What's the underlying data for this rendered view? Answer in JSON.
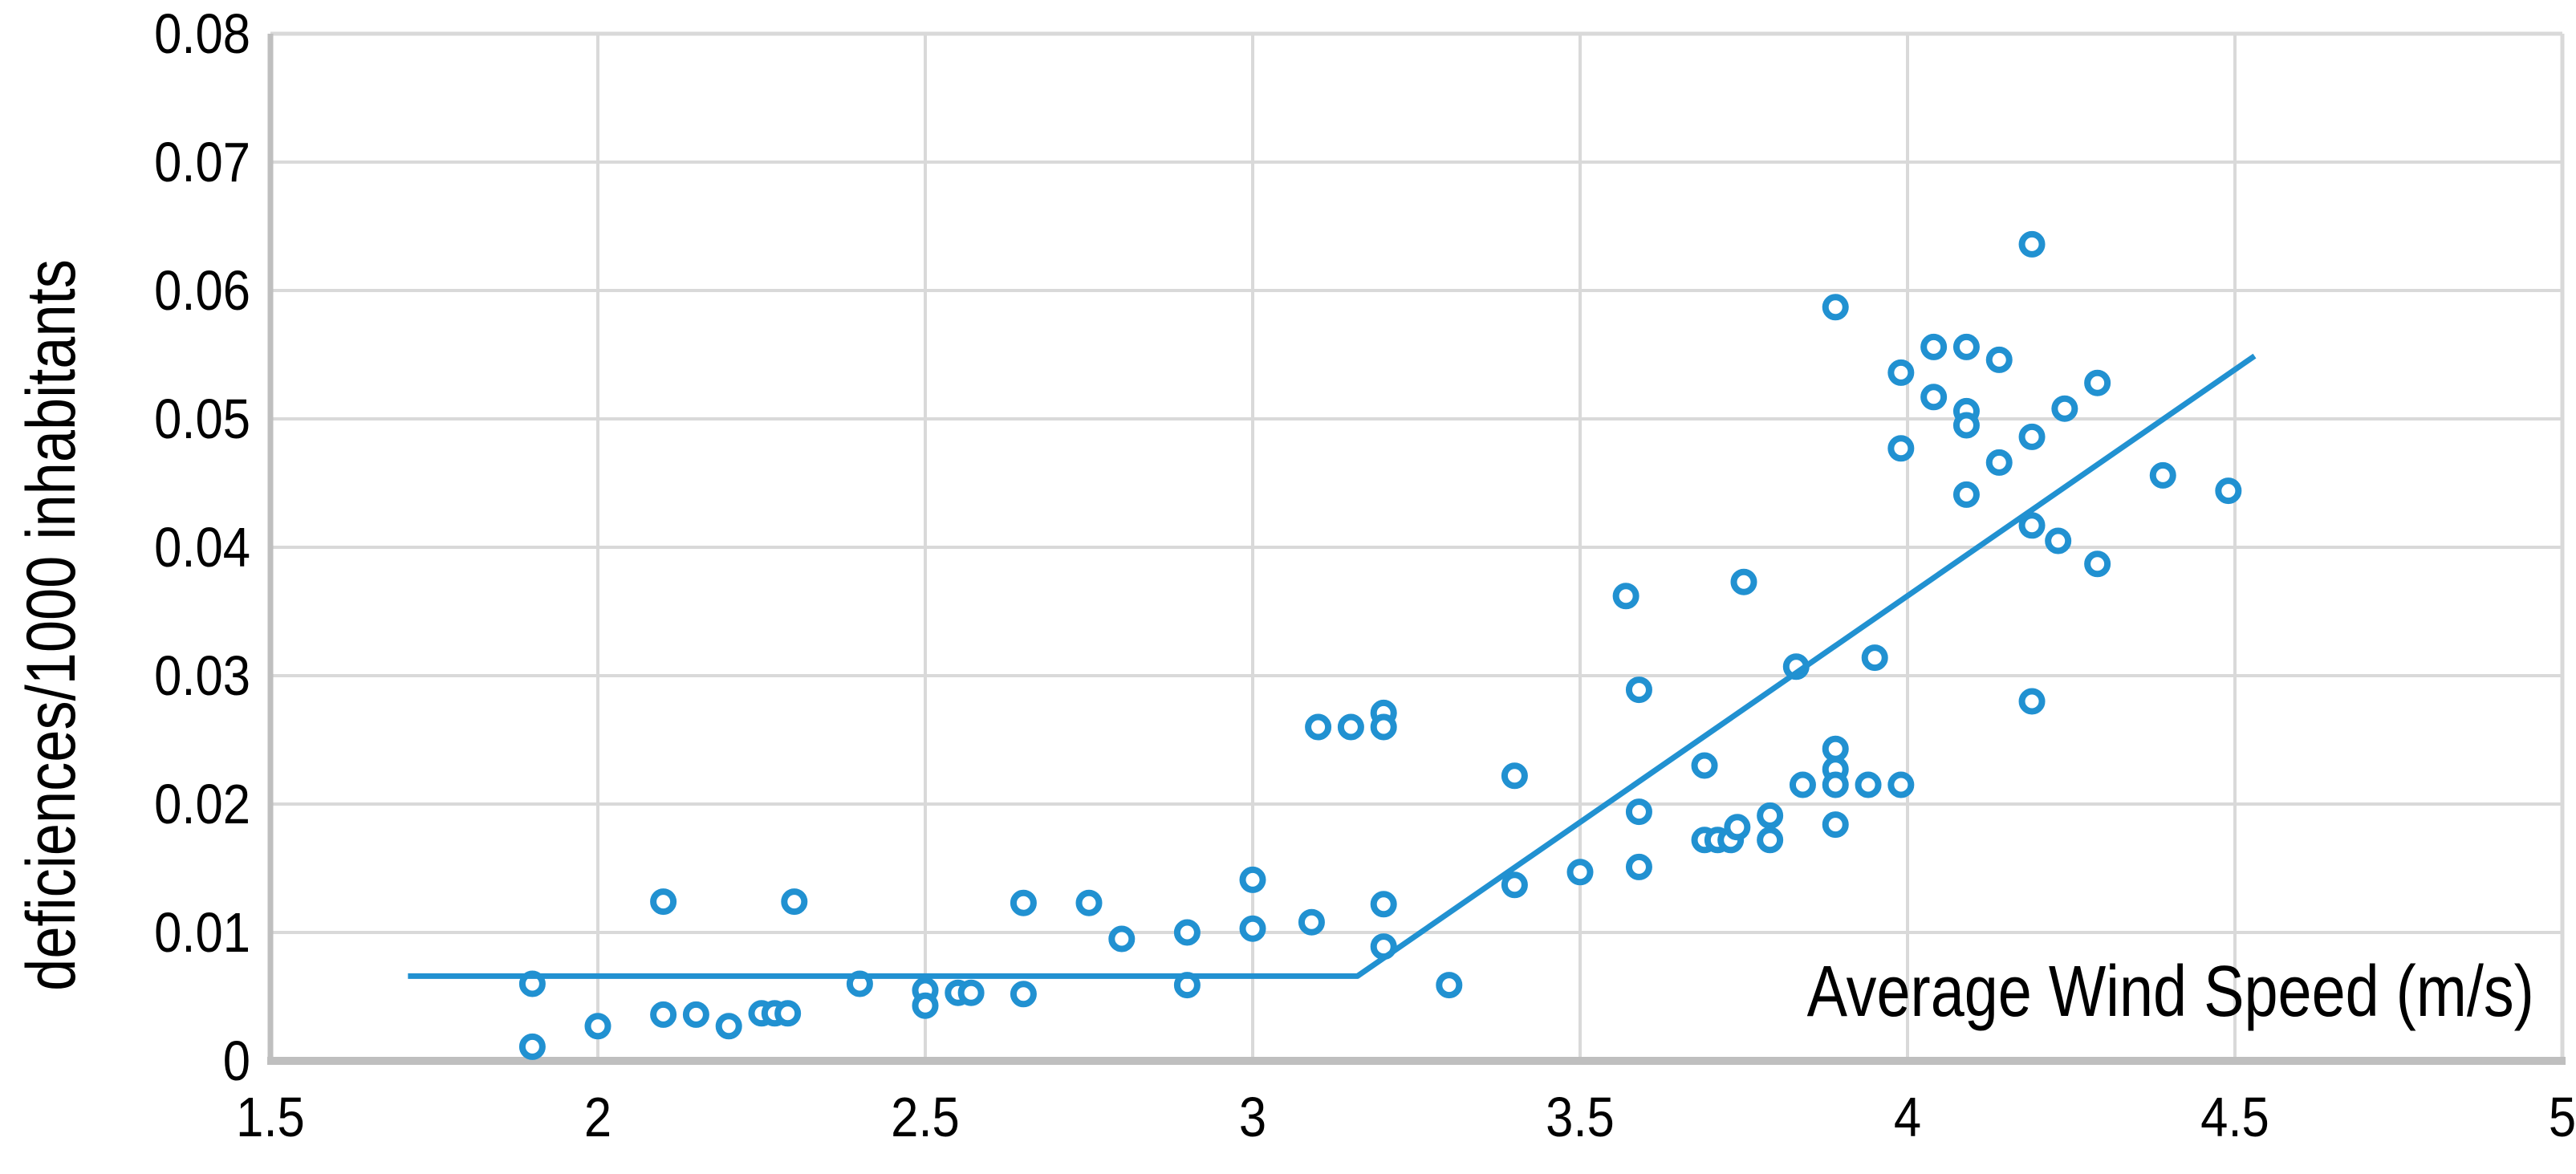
{
  "chart_data": {
    "type": "scatter",
    "title": "",
    "xlabel": "Average Wind Speed (m/s)",
    "ylabel": "deficiences/1000 inhabitants",
    "xlim": [
      1.5,
      5
    ],
    "ylim": [
      0,
      0.08
    ],
    "x_tick_values": [
      1.5,
      2,
      2.5,
      3,
      3.5,
      4,
      4.5,
      5
    ],
    "x_tick_labels": [
      "1.5",
      "2",
      "2.5",
      "3",
      "3.5",
      "4",
      "4.5",
      "5"
    ],
    "y_tick_values": [
      0,
      0.01,
      0.02,
      0.03,
      0.04,
      0.05,
      0.06,
      0.07,
      0.08
    ],
    "y_tick_labels": [
      "0",
      "0.01",
      "0.02",
      "0.03",
      "0.04",
      "0.05",
      "0.06",
      "0.07",
      "0.08"
    ],
    "grid": true,
    "legend_position": "none",
    "colors": {
      "marker_stroke": "#2191D1",
      "marker_fill": "#FFFFFF",
      "trend_line": "#2191D1",
      "gridline": "#D9D9D9",
      "axis_line": "#BFBFBF",
      "text": "#000000"
    },
    "series": [
      {
        "name": "deficiencies per 1000 inhabitants vs average wind speed",
        "marker": "open-circle",
        "points": [
          [
            1.9,
            0.006
          ],
          [
            1.9,
            0.0011
          ],
          [
            2.0,
            0.0027
          ],
          [
            2.1,
            0.0124
          ],
          [
            2.1,
            0.0036
          ],
          [
            2.15,
            0.0036
          ],
          [
            2.2,
            0.0027
          ],
          [
            2.25,
            0.0037
          ],
          [
            2.27,
            0.0037
          ],
          [
            2.29,
            0.0037
          ],
          [
            2.3,
            0.0124
          ],
          [
            2.4,
            0.006
          ],
          [
            2.5,
            0.0055
          ],
          [
            2.5,
            0.0043
          ],
          [
            2.55,
            0.0053
          ],
          [
            2.57,
            0.0053
          ],
          [
            2.65,
            0.0123
          ],
          [
            2.65,
            0.0052
          ],
          [
            2.75,
            0.0123
          ],
          [
            2.8,
            0.0095
          ],
          [
            2.9,
            0.01
          ],
          [
            2.9,
            0.0059
          ],
          [
            3.0,
            0.0141
          ],
          [
            3.0,
            0.0103
          ],
          [
            3.09,
            0.0108
          ],
          [
            3.1,
            0.026
          ],
          [
            3.15,
            0.026
          ],
          [
            3.2,
            0.0271
          ],
          [
            3.2,
            0.026
          ],
          [
            3.2,
            0.0122
          ],
          [
            3.2,
            0.0089
          ],
          [
            3.3,
            0.0059
          ],
          [
            3.4,
            0.0222
          ],
          [
            3.4,
            0.0137
          ],
          [
            3.5,
            0.0147
          ],
          [
            3.57,
            0.0362
          ],
          [
            3.59,
            0.0289
          ],
          [
            3.59,
            0.0194
          ],
          [
            3.59,
            0.0151
          ],
          [
            3.69,
            0.023
          ],
          [
            3.69,
            0.0172
          ],
          [
            3.71,
            0.0172
          ],
          [
            3.73,
            0.0172
          ],
          [
            3.74,
            0.0182
          ],
          [
            3.75,
            0.0373
          ],
          [
            3.79,
            0.0191
          ],
          [
            3.79,
            0.0172
          ],
          [
            3.83,
            0.0307
          ],
          [
            3.84,
            0.0215
          ],
          [
            3.89,
            0.0587
          ],
          [
            3.89,
            0.0243
          ],
          [
            3.89,
            0.0227
          ],
          [
            3.89,
            0.0215
          ],
          [
            3.89,
            0.0184
          ],
          [
            3.94,
            0.0215
          ],
          [
            3.95,
            0.0314
          ],
          [
            3.99,
            0.0536
          ],
          [
            3.99,
            0.0477
          ],
          [
            3.99,
            0.0215
          ],
          [
            4.04,
            0.0556
          ],
          [
            4.04,
            0.0517
          ],
          [
            4.09,
            0.0556
          ],
          [
            4.09,
            0.0506
          ],
          [
            4.09,
            0.0495
          ],
          [
            4.09,
            0.0441
          ],
          [
            4.14,
            0.0546
          ],
          [
            4.14,
            0.0466
          ],
          [
            4.19,
            0.0636
          ],
          [
            4.19,
            0.0486
          ],
          [
            4.19,
            0.0417
          ],
          [
            4.19,
            0.028
          ],
          [
            4.23,
            0.0405
          ],
          [
            4.24,
            0.0508
          ],
          [
            4.29,
            0.0528
          ],
          [
            4.29,
            0.0387
          ],
          [
            4.39,
            0.0456
          ],
          [
            4.49,
            0.0444
          ]
        ]
      }
    ],
    "trend_line": {
      "shape": "piecewise-linear",
      "points": [
        [
          1.71,
          0.0066
        ],
        [
          3.16,
          0.0066
        ],
        [
          4.53,
          0.0549
        ]
      ]
    }
  }
}
